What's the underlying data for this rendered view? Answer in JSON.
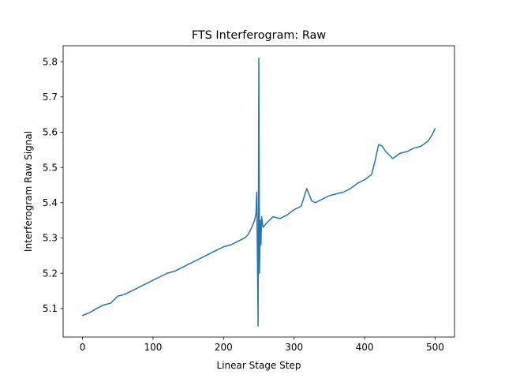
{
  "chart_data": {
    "type": "line",
    "title": "FTS Interferogram: Raw",
    "xlabel": "Linear Stage Step",
    "ylabel": "Interferogram Raw Signal",
    "xlim": [
      -27.5,
      527.5
    ],
    "ylim": [
      5.019,
      5.845
    ],
    "xticks": [
      0,
      100,
      200,
      300,
      400,
      500
    ],
    "yticks": [
      5.1,
      5.2,
      5.3,
      5.4,
      5.5,
      5.6,
      5.7,
      5.8
    ],
    "xtick_labels": [
      "0",
      "100",
      "200",
      "300",
      "400",
      "500"
    ],
    "ytick_labels": [
      "5.1",
      "5.2",
      "5.3",
      "5.4",
      "5.5",
      "5.6",
      "5.7",
      "5.8"
    ],
    "grid": false,
    "legend": "none",
    "colors": {
      "line": "#1f77b4",
      "axes": "#000000",
      "background": "#ffffff"
    },
    "series": [
      {
        "x": [
          0,
          10,
          20,
          30,
          40,
          50,
          60,
          70,
          80,
          90,
          100,
          110,
          120,
          130,
          140,
          150,
          160,
          170,
          180,
          190,
          200,
          210,
          220,
          230,
          235,
          240,
          244,
          246,
          247,
          248,
          249,
          250,
          251,
          252,
          253,
          254,
          256,
          260,
          265,
          270,
          280,
          290,
          300,
          310,
          318,
          325,
          330,
          340,
          350,
          360,
          370,
          380,
          390,
          400,
          410,
          415,
          420,
          425,
          430,
          440,
          450,
          460,
          470,
          480,
          490,
          495,
          500
        ],
        "values": [
          5.08,
          5.088,
          5.1,
          5.11,
          5.115,
          5.135,
          5.14,
          5.15,
          5.16,
          5.17,
          5.18,
          5.19,
          5.2,
          5.205,
          5.215,
          5.225,
          5.235,
          5.245,
          5.255,
          5.265,
          5.275,
          5.28,
          5.29,
          5.3,
          5.31,
          5.33,
          5.35,
          5.37,
          5.43,
          5.25,
          5.05,
          5.81,
          5.2,
          5.35,
          5.28,
          5.36,
          5.33,
          5.34,
          5.35,
          5.36,
          5.355,
          5.365,
          5.38,
          5.39,
          5.44,
          5.405,
          5.4,
          5.41,
          5.42,
          5.425,
          5.43,
          5.44,
          5.455,
          5.465,
          5.48,
          5.52,
          5.565,
          5.56,
          5.545,
          5.525,
          5.54,
          5.545,
          5.555,
          5.56,
          5.575,
          5.59,
          5.61
        ]
      }
    ]
  }
}
